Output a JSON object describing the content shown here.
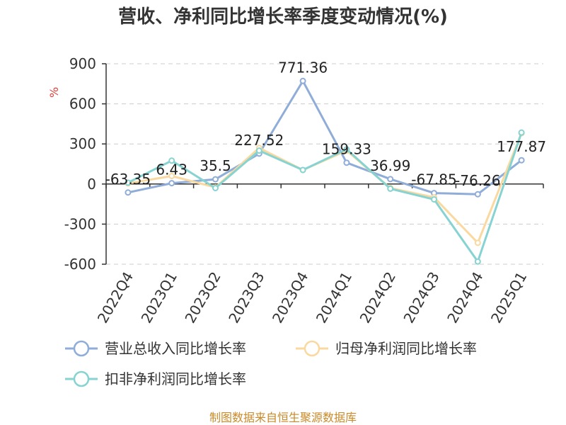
{
  "chart_data": {
    "type": "line",
    "title": "营收、净利同比增长率季度变动情况(%)",
    "ylabel": "%",
    "categories": [
      "2022Q4",
      "2023Q1",
      "2023Q2",
      "2023Q3",
      "2023Q4",
      "2024Q1",
      "2024Q2",
      "2024Q3",
      "2024Q4",
      "2025Q1"
    ],
    "ylim": [
      -600,
      900
    ],
    "yticks": [
      900,
      600,
      300,
      0,
      -300,
      -600
    ],
    "grid": true,
    "legend_position": "bottom",
    "series": [
      {
        "name": "营业总收入同比增长率",
        "color": "#8fadd8",
        "values": [
          -63.35,
          6.43,
          35.5,
          227.52,
          771.36,
          159.33,
          36.99,
          -67.85,
          -76.26,
          177.87
        ],
        "labels": [
          "-63.35",
          "6.43",
          "35.5",
          "227.52",
          "771.36",
          "159.33",
          "36.99",
          "-67.85",
          "-76.26",
          "177.87"
        ]
      },
      {
        "name": "归母净利润同比增长率",
        "color": "#f9d9a0",
        "values": [
          5,
          60,
          -25,
          270,
          105,
          250,
          -30,
          -100,
          -440,
          380
        ]
      },
      {
        "name": "扣非净利润同比增长率",
        "color": "#86d3d1",
        "values": [
          10,
          175,
          -30,
          250,
          105,
          260,
          -35,
          -115,
          -580,
          385
        ]
      }
    ]
  },
  "footer": {
    "source": "制图数据来自恒生聚源数据库"
  }
}
